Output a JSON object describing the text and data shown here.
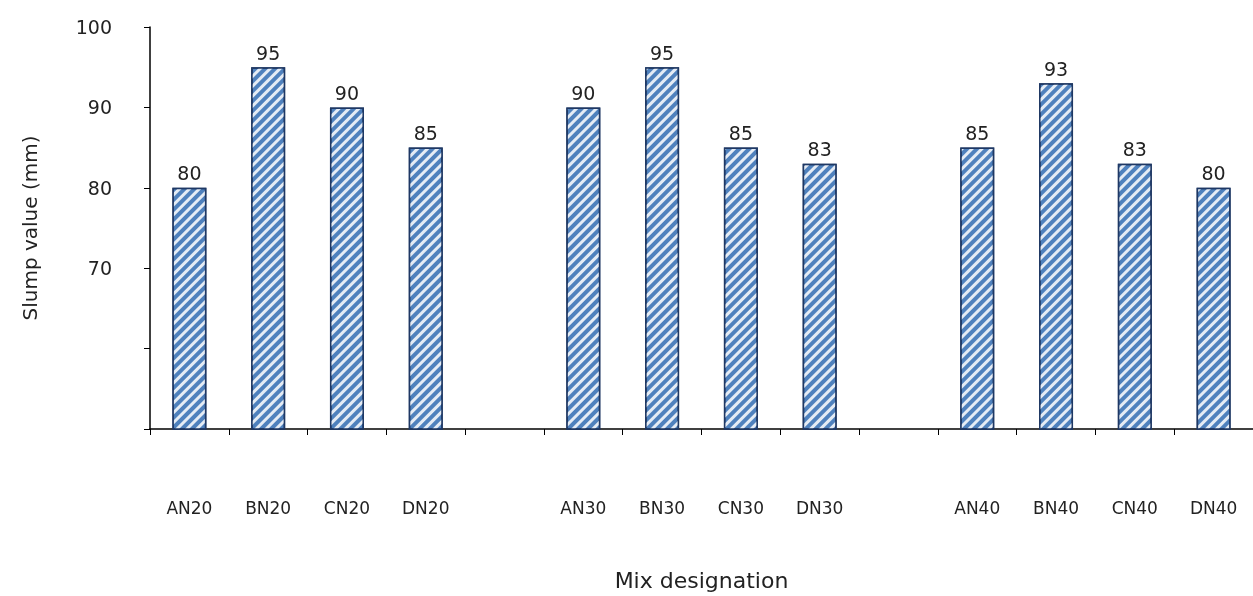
{
  "chart_data": {
    "type": "bar",
    "xlabel": "Mix designation",
    "ylabel": "Slump value (mm)",
    "categories": [
      "AN20",
      "BN20",
      "CN20",
      "DN20",
      null,
      "AN30",
      "BN30",
      "CN30",
      "DN30",
      null,
      "AN40",
      "BN40",
      "CN40",
      "DN40"
    ],
    "values": [
      80,
      95,
      90,
      85,
      null,
      90,
      95,
      85,
      83,
      null,
      85,
      93,
      83,
      80
    ],
    "color": "#4f81bd",
    "data_labels": true,
    "ylim": [
      50,
      100
    ],
    "yticks": [
      {
        "value": 50,
        "label": null
      },
      {
        "value": 60,
        "label": null
      },
      70,
      80,
      90,
      100
    ]
  }
}
